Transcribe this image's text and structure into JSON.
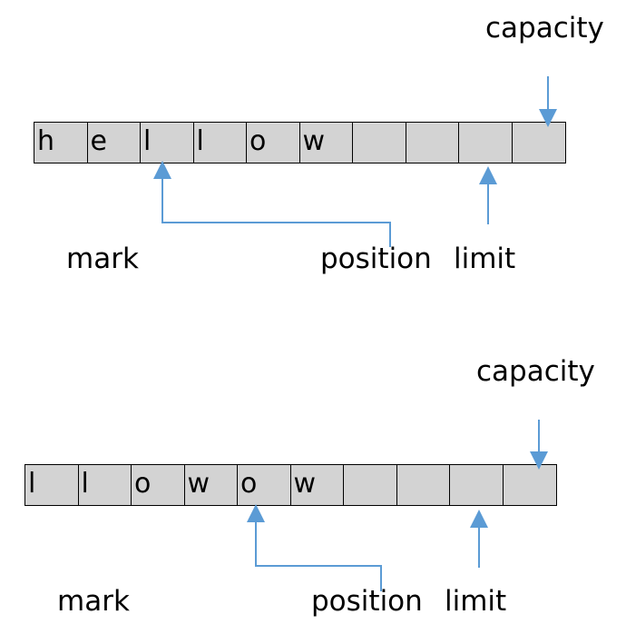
{
  "panels": [
    {
      "cells": [
        "h",
        "e",
        "l",
        "l",
        "o",
        "w",
        "",
        "",
        "",
        ""
      ],
      "labels": {
        "capacity": "capacity",
        "mark": "mark",
        "position": "position",
        "limit": "limit"
      }
    },
    {
      "cells": [
        "l",
        "l",
        "o",
        "w",
        "o",
        "w",
        "",
        "",
        "",
        ""
      ],
      "labels": {
        "capacity": "capacity",
        "mark": "mark",
        "position": "position",
        "limit": "limit"
      }
    }
  ],
  "colors": {
    "arrow": "#5b9bd5",
    "cell_fill": "#d3d3d3",
    "cell_border": "#000000"
  }
}
